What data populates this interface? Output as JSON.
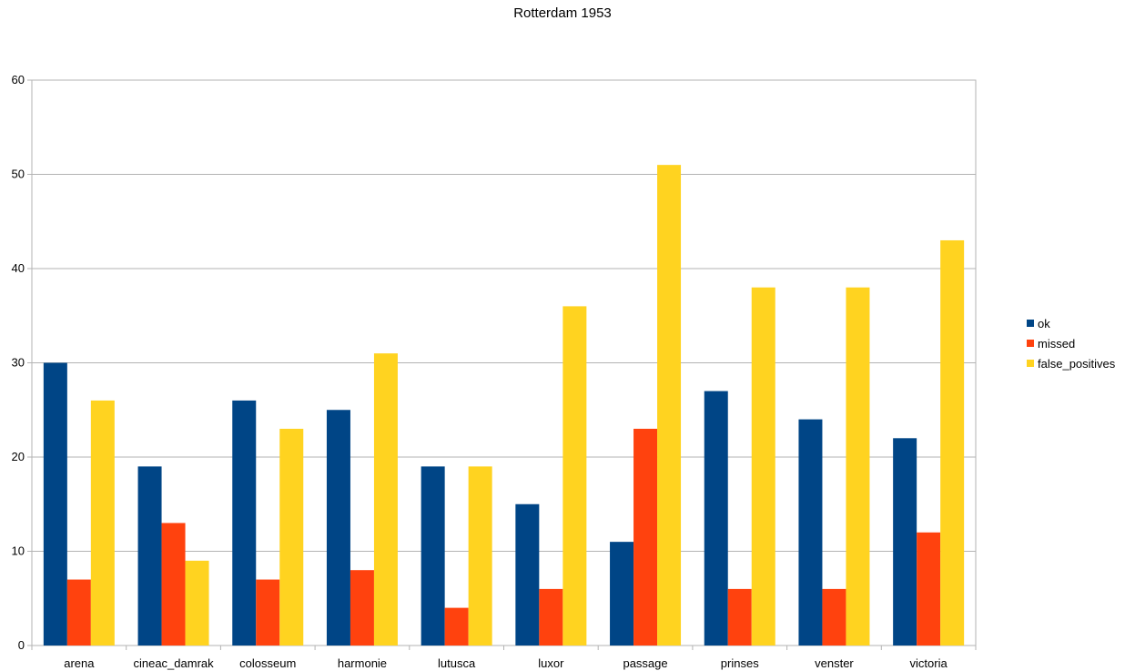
{
  "chart_data": {
    "type": "bar",
    "title": "Rotterdam 1953",
    "xlabel": "",
    "ylabel": "",
    "ylim": [
      0,
      60
    ],
    "yticks": [
      0,
      10,
      20,
      30,
      40,
      50,
      60
    ],
    "grid": true,
    "legend_position": "right",
    "categories": [
      "arena",
      "cineac_damrak",
      "colosseum",
      "harmonie",
      "lutusca",
      "luxor",
      "passage",
      "prinses",
      "venster",
      "victoria"
    ],
    "series": [
      {
        "name": "ok",
        "color": "#004586",
        "values": [
          30,
          19,
          26,
          25,
          19,
          15,
          11,
          27,
          24,
          22
        ]
      },
      {
        "name": "missed",
        "color": "#ff420e",
        "values": [
          7,
          13,
          7,
          8,
          4,
          6,
          23,
          6,
          6,
          12
        ]
      },
      {
        "name": "false_positives",
        "color": "#ffd320",
        "values": [
          26,
          9,
          23,
          31,
          19,
          36,
          51,
          38,
          38,
          43
        ]
      }
    ]
  }
}
